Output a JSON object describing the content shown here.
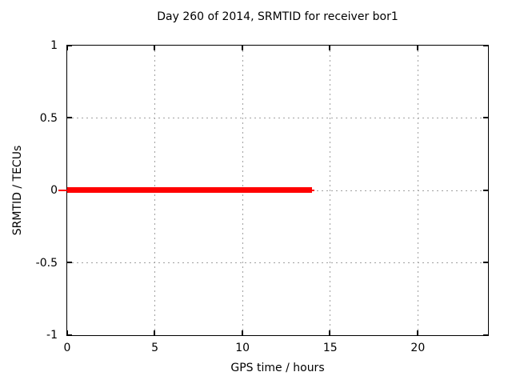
{
  "chart_data": {
    "type": "line",
    "title": "Day 260 of 2014, SRMTID for receiver bor1",
    "xlabel": "GPS time / hours",
    "ylabel": "SRMTID / TECUs",
    "xlim": [
      0,
      24
    ],
    "ylim": [
      -1,
      1
    ],
    "xticks": [
      "0",
      "5",
      "10",
      "15",
      "20"
    ],
    "yticks": [
      "1",
      "0.5",
      "0",
      "-0.5",
      "-1"
    ],
    "grid": true,
    "legend_position": "none",
    "series": [
      {
        "name": "SRMTID",
        "color": "#ff0000",
        "x": [
          0,
          14
        ],
        "y": [
          0,
          0
        ]
      }
    ]
  },
  "colors": {
    "background": "#ffffff",
    "frame": "#000000",
    "grid": "#a0a0a0",
    "text": "#000000",
    "series": "#ff0000"
  }
}
